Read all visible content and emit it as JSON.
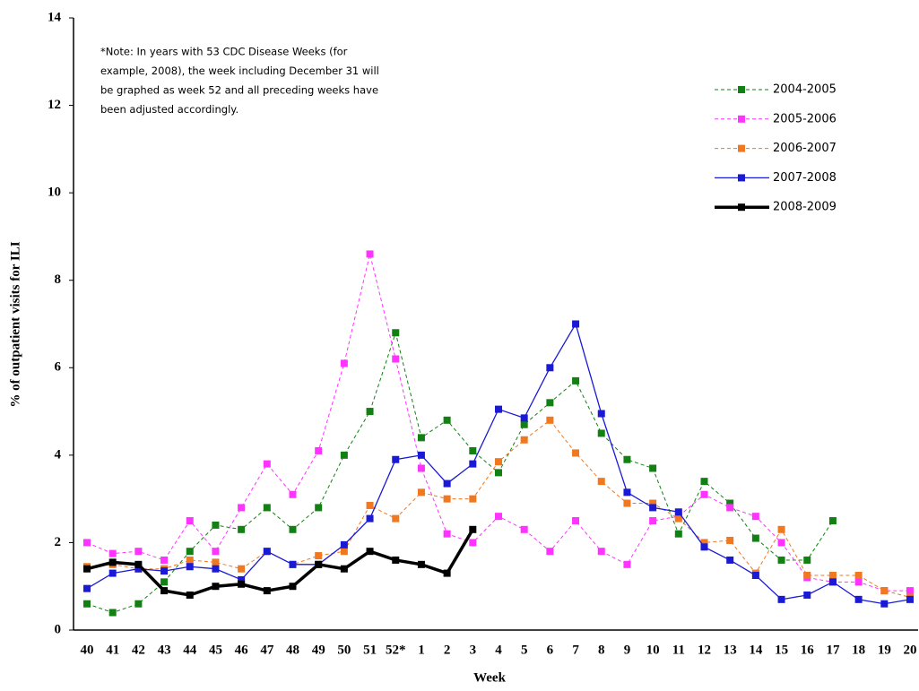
{
  "chart_data": {
    "type": "line",
    "x_label": "Week",
    "y_label": "% of outpatient visits for ILI",
    "note_lines": [
      "*Note: In years with 53 CDC Disease Weeks (for",
      "example, 2008), the week including December 31 will",
      "be graphed as week 52 and all preceding weeks have",
      "been adjusted accordingly."
    ],
    "categories": [
      "40",
      "41",
      "42",
      "43",
      "44",
      "45",
      "46",
      "47",
      "48",
      "49",
      "50",
      "51",
      "52*",
      "1",
      "2",
      "3",
      "4",
      "5",
      "6",
      "7",
      "8",
      "9",
      "10",
      "11",
      "12",
      "13",
      "14",
      "15",
      "16",
      "17",
      "18",
      "19",
      "20"
    ],
    "ylim": [
      0,
      14
    ],
    "yticks": [
      0,
      2,
      4,
      6,
      8,
      10,
      12,
      14
    ],
    "grid": false,
    "legend": "top-right",
    "series": [
      {
        "name": "2004-2005",
        "color": "#138013",
        "dashed": true,
        "width": 1,
        "values": [
          0.6,
          0.4,
          0.6,
          1.1,
          1.8,
          2.4,
          2.3,
          2.8,
          2.3,
          2.8,
          4.0,
          5.0,
          6.8,
          4.4,
          4.8,
          4.1,
          3.6,
          4.7,
          5.2,
          5.7,
          4.5,
          3.9,
          3.7,
          2.2,
          3.4,
          2.9,
          2.1,
          1.6,
          1.6,
          2.5,
          null,
          null,
          null
        ]
      },
      {
        "name": "2005-2006",
        "color": "#ff33ff",
        "dashed": true,
        "width": 1,
        "values": [
          2.0,
          1.75,
          1.8,
          1.6,
          2.5,
          1.8,
          2.8,
          3.8,
          3.1,
          4.1,
          6.1,
          8.6,
          6.2,
          3.7,
          2.2,
          2.0,
          2.6,
          2.3,
          1.8,
          2.5,
          1.8,
          1.5,
          2.5,
          2.6,
          3.1,
          2.8,
          2.6,
          2.0,
          1.2,
          1.1,
          1.1,
          0.9,
          0.9
        ]
      },
      {
        "name": "2006-2007",
        "color": "#f07820",
        "dashed": true,
        "width": 1,
        "values": [
          1.45,
          1.5,
          1.4,
          1.4,
          1.6,
          1.55,
          1.4,
          1.8,
          1.5,
          1.7,
          1.8,
          2.85,
          2.55,
          3.15,
          3.0,
          3.0,
          3.85,
          4.35,
          4.8,
          4.05,
          3.4,
          2.9,
          2.9,
          2.55,
          2.0,
          2.05,
          1.3,
          2.3,
          1.25,
          1.25,
          1.25,
          0.9,
          0.75
        ]
      },
      {
        "name": "2007-2008",
        "color": "#1a1ad6",
        "dashed": false,
        "width": 1.3,
        "values": [
          0.95,
          1.3,
          1.4,
          1.35,
          1.45,
          1.4,
          1.15,
          1.8,
          1.5,
          1.5,
          1.95,
          2.55,
          3.9,
          4.0,
          3.35,
          3.8,
          5.05,
          4.85,
          6.0,
          7.0,
          4.95,
          3.15,
          2.8,
          2.7,
          1.9,
          1.6,
          1.25,
          0.7,
          0.8,
          1.1,
          0.7,
          0.6,
          0.7
        ]
      },
      {
        "name": "2008-2009",
        "color": "#000000",
        "dashed": false,
        "width": 3.5,
        "values": [
          1.4,
          1.55,
          1.5,
          0.9,
          0.8,
          1.0,
          1.05,
          0.9,
          1.0,
          1.5,
          1.4,
          1.8,
          1.6,
          1.5,
          1.3,
          2.3,
          null,
          null,
          null,
          null,
          null,
          null,
          null,
          null,
          null,
          null,
          null,
          null,
          null,
          null,
          null,
          null,
          null
        ]
      }
    ]
  }
}
